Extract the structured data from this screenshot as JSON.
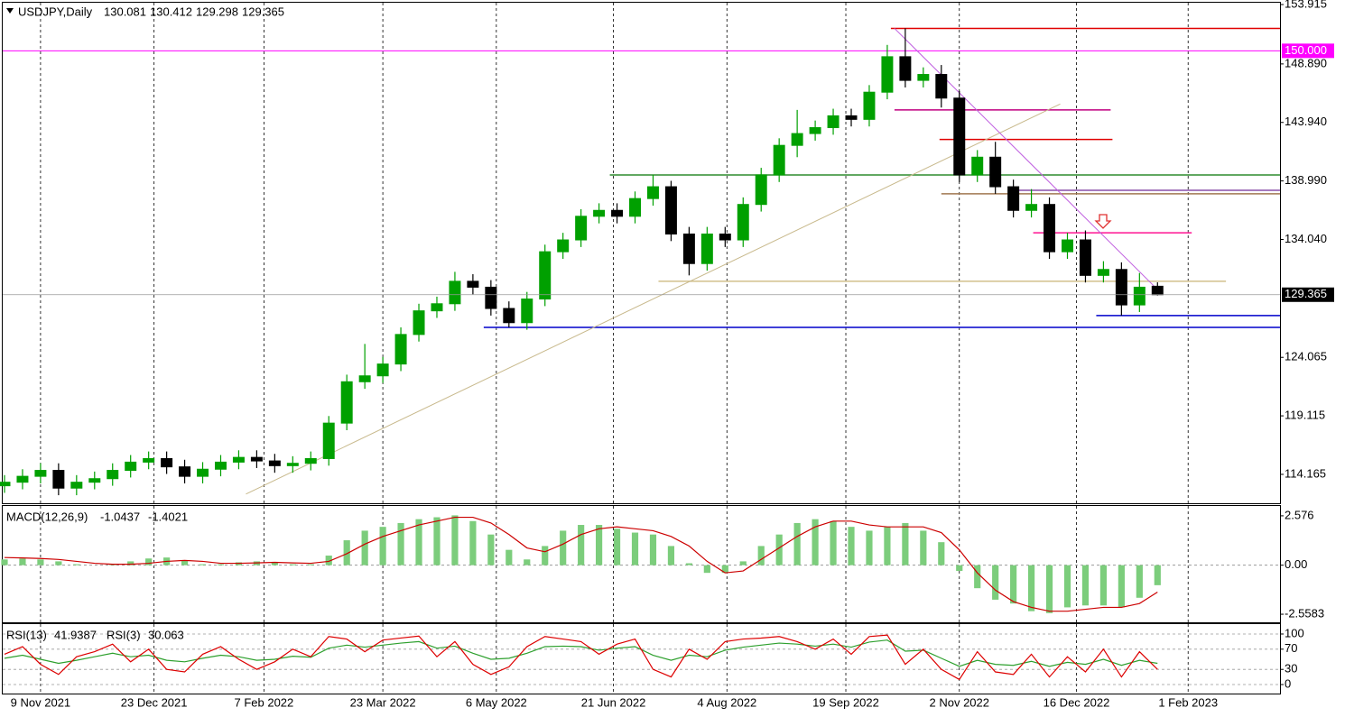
{
  "chart_data": [
    {
      "type": "candlestick",
      "title": "USDJPY,Daily",
      "open": [
        113.2,
        113.5,
        114,
        114.5,
        113,
        113.5,
        113.8,
        114.5,
        115.2,
        115.5,
        114.8,
        114,
        114.6,
        115.2,
        115.6,
        115.3,
        114.9,
        115.1,
        115.5,
        118.5,
        122,
        122.5,
        123.5,
        126,
        128,
        128.6,
        130.5,
        130,
        128.2,
        127,
        129,
        133,
        134,
        136,
        136.5,
        136,
        137.5,
        138.5,
        134.5,
        132,
        134.5,
        134,
        137,
        139.5,
        142,
        143,
        143.5,
        144.5,
        144.2,
        146.5,
        149.5,
        147.5,
        148,
        146,
        139.5,
        141,
        138.5,
        136.5,
        137,
        133,
        134,
        131,
        131.5,
        128.5,
        130.081
      ],
      "high": [
        114.1,
        114.6,
        115.1,
        115.1,
        114.1,
        114.4,
        115.1,
        115.8,
        116.1,
        116.1,
        115.4,
        115.2,
        115.8,
        116.2,
        116.2,
        115.9,
        115.7,
        116.1,
        119.1,
        122.6,
        125.2,
        124.1,
        126.6,
        128.6,
        129.2,
        131.3,
        131.1,
        130.6,
        128.8,
        129.6,
        133.6,
        134.6,
        136.6,
        137.1,
        137.1,
        138.1,
        139.5,
        139,
        135.1,
        135.1,
        135.1,
        137.6,
        140.1,
        142.6,
        145,
        144.1,
        145.1,
        145.1,
        147.1,
        150.5,
        151.9,
        148.6,
        148.8,
        146.6,
        141.6,
        142.3,
        139.1,
        138.3,
        137.6,
        134.6,
        134.8,
        132.2,
        132.1,
        131.2,
        130.412
      ],
      "low": [
        112.6,
        112.9,
        113.4,
        112.4,
        112.4,
        112.9,
        113.2,
        113.9,
        114.6,
        114.2,
        113.4,
        113.4,
        114,
        114.6,
        114.7,
        114.3,
        114.3,
        114.5,
        114.9,
        117.9,
        121.4,
        121.9,
        122.9,
        125.4,
        127.4,
        128,
        129.4,
        127.6,
        126.6,
        126.4,
        128.4,
        132.4,
        133.4,
        135.4,
        135.4,
        135.4,
        136.9,
        133.9,
        131,
        131.4,
        133.4,
        133.4,
        136.4,
        138.9,
        141,
        142.4,
        142.9,
        143.6,
        143.6,
        145.9,
        146.9,
        146.9,
        145.2,
        138.9,
        138.9,
        137.9,
        135.9,
        135.9,
        132.4,
        132.4,
        130.4,
        130.4,
        127.6,
        127.9,
        129.298
      ],
      "close": [
        113.5,
        114,
        114.5,
        113,
        113.5,
        113.8,
        114.5,
        115.2,
        115.5,
        114.8,
        114,
        114.6,
        115.2,
        115.6,
        115.3,
        114.9,
        115.1,
        115.5,
        118.5,
        122,
        122.5,
        123.5,
        126,
        128,
        128.6,
        130.5,
        130,
        128.2,
        127,
        129,
        133,
        134,
        136,
        136.5,
        136,
        137.5,
        138.5,
        134.5,
        132,
        134.5,
        134,
        137,
        139.5,
        142,
        143,
        143.5,
        144.5,
        144.2,
        146.5,
        149.5,
        147.5,
        148,
        146,
        139.5,
        141,
        138.5,
        136.5,
        137,
        133,
        134,
        131,
        131.5,
        128.5,
        130,
        129.365
      ],
      "up_color": "#00a000",
      "down_color": "#000000",
      "xlim": [
        -0.1,
        70.8
      ],
      "xticks": [
        {
          "value": 2,
          "label": "9 Nov 2021"
        },
        {
          "value": 8.3,
          "label": "23 Dec 2021"
        },
        {
          "value": 14.4,
          "label": "7 Feb 2022"
        },
        {
          "value": 21,
          "label": "23 Mar 2022"
        },
        {
          "value": 27.3,
          "label": "6 May 2022"
        },
        {
          "value": 33.8,
          "label": "21 Jun 2022"
        },
        {
          "value": 40.1,
          "label": "4 Aug 2022"
        },
        {
          "value": 46.7,
          "label": "19 Sep 2022"
        },
        {
          "value": 53,
          "label": "2 Nov 2022"
        },
        {
          "value": 59.5,
          "label": "16 Dec 2022"
        },
        {
          "value": 65.7,
          "label": "1 Feb 2023"
        }
      ],
      "ylim": [
        111.72,
        154.07
      ],
      "yticks": [
        153.915,
        {
          "value": 148.89,
          "label": "148.890"
        },
        {
          "value": 143.94,
          "label": "143.940"
        },
        {
          "value": 138.99,
          "label": "138.990"
        },
        {
          "value": 134.04,
          "label": "134.040"
        },
        124.065,
        119.115,
        114.165
      ],
      "grid": true,
      "levels": [
        {
          "price": 151.9,
          "from": 49.2,
          "to": 70.8,
          "color": "#e00000"
        },
        {
          "price": 150,
          "label": "150.000",
          "from": -0.1,
          "to": 70.8,
          "color": "#ff00ff"
        },
        {
          "price": 145,
          "from": 49.4,
          "to": 61.4,
          "color": "#c00080"
        },
        {
          "price": 142.5,
          "from": 51.9,
          "to": 61.5,
          "color": "#e00000"
        },
        {
          "price": 139.5,
          "from": 33.6,
          "to": 70.8,
          "color": "#2e8b2e"
        },
        {
          "price": 138.2,
          "from": 56.1,
          "to": 70.8,
          "color": "#8a4fa8"
        },
        {
          "price": 137.9,
          "from": 52,
          "to": 70.8,
          "color": "#a07850"
        },
        {
          "price": 134.6,
          "from": 57.1,
          "to": 65.9,
          "color": "#ff1493"
        },
        {
          "price": 130.5,
          "from": 36.3,
          "to": 67.8,
          "color": "#d2c08c"
        },
        {
          "price": 127.6,
          "from": 60.6,
          "to": 70.8,
          "color": "#0000cc"
        },
        {
          "price": 126.6,
          "from": 26.6,
          "to": 70.8,
          "color": "#0000cc"
        }
      ],
      "trendlines": [
        {
          "x": [
            13.4,
            58.6
          ],
          "y": [
            112.5,
            145.5
          ],
          "color": "#c8b98c"
        },
        {
          "x": [
            49.4,
            64
          ],
          "y": [
            151.9,
            129.8
          ],
          "color": "#c060e0"
        }
      ]
    },
    {
      "type": "macd",
      "title": "MACD(12,26,9)",
      "histogram": [
        0.3,
        0.35,
        0.3,
        0.2,
        0.05,
        0,
        0.05,
        0.2,
        0.35,
        0.4,
        0.25,
        0.05,
        0.05,
        0.15,
        0.2,
        0.15,
        0.05,
        0.05,
        0.5,
        1.3,
        1.8,
        2.0,
        2.2,
        2.4,
        2.5,
        2.6,
        2.3,
        1.6,
        0.8,
        0.3,
        1.0,
        1.8,
        2.1,
        2.1,
        1.9,
        1.7,
        1.6,
        1.0,
        0.1,
        -0.4,
        -0.4,
        0.2,
        1.0,
        1.6,
        2.2,
        2.4,
        2.3,
        2.0,
        1.8,
        2.0,
        2.2,
        1.8,
        1.2,
        -0.3,
        -1.2,
        -1.8,
        -2.0,
        -2.4,
        -2.5,
        -2.2,
        -2.1,
        -2.1,
        -2.2,
        -1.7,
        -1.0437
      ],
      "signal": [
        0.4,
        0.38,
        0.35,
        0.3,
        0.2,
        0.1,
        0.05,
        0.05,
        0.1,
        0.2,
        0.25,
        0.2,
        0.1,
        0.1,
        0.12,
        0.15,
        0.12,
        0.1,
        0.2,
        0.6,
        1.1,
        1.5,
        1.8,
        2.1,
        2.3,
        2.5,
        2.5,
        2.2,
        1.6,
        0.9,
        0.7,
        1.1,
        1.6,
        1.9,
        2.0,
        1.9,
        1.8,
        1.5,
        1.0,
        0.2,
        -0.4,
        -0.3,
        0.3,
        0.9,
        1.5,
        2.0,
        2.3,
        2.3,
        2.1,
        2.0,
        2.0,
        2.0,
        1.7,
        0.8,
        -0.4,
        -1.3,
        -1.9,
        -2.2,
        -2.4,
        -2.4,
        -2.3,
        -2.2,
        -2.2,
        -2.0,
        -1.4021
      ],
      "histogram_color": "#7ccd7c",
      "signal_color": "#cc0000",
      "ylim": [
        -2.98,
        3.09
      ],
      "yticks": [
        2.576,
        {
          "value": 0,
          "label": "0.00"
        },
        -2.5583
      ]
    },
    {
      "type": "rsi",
      "series": [
        {
          "name": "RSI(13)",
          "color": "#2ea02e",
          "values": [
            52,
            58,
            50,
            42,
            48,
            55,
            62,
            55,
            58,
            48,
            45,
            52,
            58,
            55,
            48,
            50,
            56,
            54,
            72,
            78,
            74,
            78,
            82,
            85,
            72,
            76,
            62,
            50,
            52,
            62,
            75,
            76,
            75,
            68,
            72,
            75,
            58,
            48,
            58,
            55,
            68,
            74,
            78,
            82,
            80,
            76,
            80,
            74,
            84,
            88,
            66,
            68,
            52,
            36,
            48,
            40,
            38,
            46,
            36,
            44,
            40,
            50,
            38,
            48,
            41.9387
          ]
        },
        {
          "name": "RSI(3)",
          "color": "#dd0000",
          "values": [
            60,
            75,
            40,
            20,
            55,
            65,
            80,
            45,
            70,
            30,
            25,
            60,
            75,
            50,
            30,
            45,
            70,
            55,
            95,
            90,
            65,
            88,
            92,
            96,
            55,
            85,
            40,
            20,
            35,
            75,
            95,
            90,
            85,
            60,
            80,
            90,
            30,
            15,
            70,
            50,
            85,
            90,
            92,
            95,
            85,
            70,
            90,
            60,
            95,
            98,
            40,
            70,
            30,
            10,
            65,
            25,
            20,
            60,
            15,
            55,
            25,
            70,
            15,
            65,
            30.063
          ]
        }
      ],
      "ylim": [
        -19.6,
        119.6
      ],
      "yticks": [
        100,
        70,
        30,
        0
      ]
    }
  ]
}
